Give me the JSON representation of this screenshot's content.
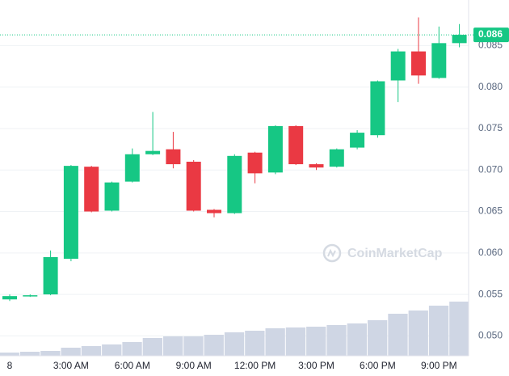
{
  "chart_data": {
    "type": "candlestick",
    "categories": [
      "8",
      null,
      null,
      "3:00 AM",
      null,
      null,
      "6:00 AM",
      null,
      null,
      "9:00 AM",
      null,
      null,
      "12:00 PM",
      null,
      null,
      "3:00 PM",
      null,
      null,
      "6:00 PM",
      null,
      null,
      "9:00 PM",
      null
    ],
    "open": [
      0.0544,
      0.0548,
      0.055,
      0.0593,
      0.0704,
      0.0651,
      0.0686,
      0.0719,
      0.0725,
      0.071,
      0.0652,
      0.0648,
      0.0721,
      0.0697,
      0.0753,
      0.0707,
      0.0704,
      0.0727,
      0.0742,
      0.0808,
      0.0843,
      0.0811,
      0.0853
    ],
    "high": [
      0.055,
      0.055,
      0.0603,
      0.0706,
      0.0705,
      0.0686,
      0.0726,
      0.077,
      0.0746,
      0.0712,
      0.0653,
      0.0719,
      0.0722,
      0.0754,
      0.0754,
      0.0708,
      0.0726,
      0.0748,
      0.0808,
      0.0846,
      0.0884,
      0.0873,
      0.0876
    ],
    "low": [
      0.0542,
      0.0547,
      0.0549,
      0.059,
      0.0649,
      0.065,
      0.0685,
      0.0718,
      0.0702,
      0.065,
      0.0643,
      0.0647,
      0.0684,
      0.0695,
      0.0706,
      0.07,
      0.0703,
      0.0725,
      0.0739,
      0.0782,
      0.0804,
      0.081,
      0.0848
    ],
    "close": [
      0.0548,
      0.0549,
      0.0595,
      0.0705,
      0.065,
      0.0685,
      0.0719,
      0.0723,
      0.0707,
      0.0651,
      0.0648,
      0.0717,
      0.0696,
      0.0753,
      0.0707,
      0.0703,
      0.0725,
      0.0745,
      0.0807,
      0.0843,
      0.0814,
      0.0853,
      0.0863
    ],
    "volume": [
      4,
      5,
      6,
      10,
      12,
      14,
      17,
      22,
      24,
      24,
      26,
      29,
      31,
      34,
      35,
      36,
      38,
      40,
      44,
      52,
      56,
      62,
      67
    ],
    "up_color": "#16c784",
    "down_color": "#ea3943",
    "volume_color": "#cfd6e4",
    "ylim": [
      0.0476,
      0.0905
    ],
    "yticks": [
      0.085,
      {
        "value": 0.08,
        "label": "0.080"
      },
      0.075,
      {
        "value": 0.07,
        "label": "0.070"
      },
      0.065,
      {
        "value": 0.06,
        "label": "0.060"
      },
      0.055,
      {
        "value": 0.05,
        "label": "0.050"
      }
    ],
    "grid": true,
    "last_price": {
      "value": 0.0863,
      "label": "0.086"
    },
    "watermark": "CoinMarketCap"
  }
}
